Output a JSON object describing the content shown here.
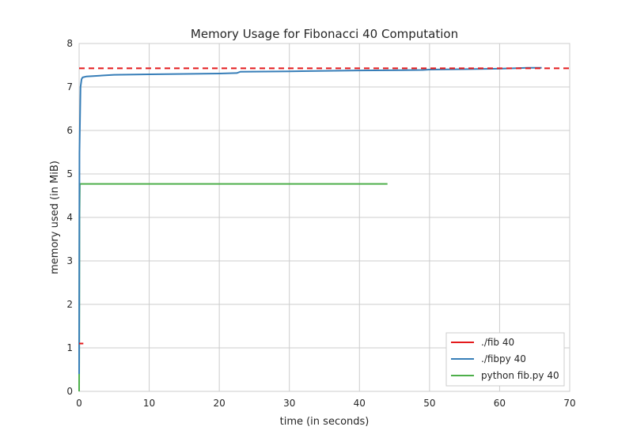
{
  "chart_data": {
    "type": "line",
    "title": "Memory Usage for Fibonacci 40 Computation",
    "xlabel": "time (in seconds)",
    "ylabel": "memory used (in MiB)",
    "xlim": [
      0,
      70
    ],
    "ylim": [
      0,
      8
    ],
    "xticks": [
      0,
      10,
      20,
      30,
      40,
      50,
      60,
      70
    ],
    "yticks": [
      0,
      1,
      2,
      3,
      4,
      5,
      6,
      7,
      8
    ],
    "grid": true,
    "legend_position": "bottom-right",
    "series": [
      {
        "name": "./fib 40",
        "color": "#e41a1c",
        "x": [
          0,
          0.6
        ],
        "y": [
          1.1,
          1.1
        ],
        "reference_line": {
          "y": 7.43,
          "x": [
            0,
            70
          ],
          "style": "dashed"
        }
      },
      {
        "name": "./fibpy 40",
        "color": "#377eb8",
        "x": [
          0,
          0.05,
          0.2,
          0.35,
          0.5,
          1,
          2,
          4,
          5,
          10,
          15,
          20,
          22.5,
          23,
          30,
          40,
          49,
          50,
          55,
          60,
          62,
          64,
          66
        ],
        "y": [
          0.4,
          5.5,
          7.0,
          7.18,
          7.22,
          7.24,
          7.25,
          7.27,
          7.28,
          7.29,
          7.3,
          7.31,
          7.32,
          7.35,
          7.36,
          7.38,
          7.39,
          7.4,
          7.41,
          7.42,
          7.43,
          7.44,
          7.44
        ]
      },
      {
        "name": "python fib.py 40",
        "color": "#4daf4a",
        "x": [
          0,
          0.05,
          0.1,
          44
        ],
        "y": [
          0,
          4.0,
          4.77,
          4.77
        ]
      }
    ]
  }
}
